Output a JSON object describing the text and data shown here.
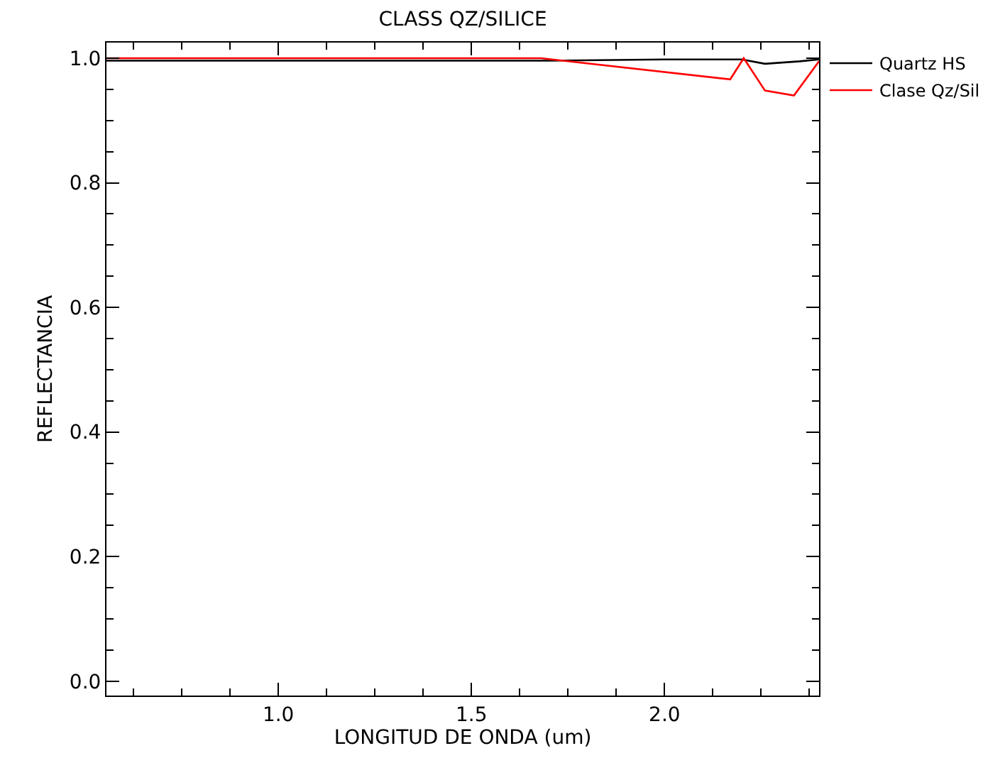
{
  "chart_data": {
    "type": "line",
    "title": "CLASS QZ/SILICE",
    "xlabel": "LONGITUD DE ONDA (um)",
    "ylabel": "REFLECTANCIA",
    "xlim": [
      0.555,
      2.4
    ],
    "ylim": [
      -0.023,
      1.025
    ],
    "xticks": [
      {
        "value": 0.625,
        "label": null
      },
      {
        "value": 0.75,
        "label": null
      },
      {
        "value": 0.875,
        "label": null
      },
      {
        "value": 1.0,
        "label": "1.0"
      },
      {
        "value": 1.125,
        "label": null
      },
      {
        "value": 1.25,
        "label": null
      },
      {
        "value": 1.375,
        "label": null
      },
      1.5,
      {
        "value": 1.625,
        "label": null
      },
      {
        "value": 1.75,
        "label": null
      },
      {
        "value": 1.875,
        "label": null
      },
      {
        "value": 2.0,
        "label": "2.0"
      },
      {
        "value": 2.125,
        "label": null
      },
      {
        "value": 2.25,
        "label": null
      },
      {
        "value": 2.375,
        "label": null
      }
    ],
    "yticks": [
      {
        "value": 0.0,
        "label": "0.0"
      },
      {
        "value": 0.05,
        "label": null
      },
      {
        "value": 0.1,
        "label": null
      },
      {
        "value": 0.15,
        "label": null
      },
      0.2,
      {
        "value": 0.25,
        "label": null
      },
      {
        "value": 0.3,
        "label": null
      },
      {
        "value": 0.35,
        "label": null
      },
      0.4,
      {
        "value": 0.45,
        "label": null
      },
      {
        "value": 0.5,
        "label": null
      },
      {
        "value": 0.55,
        "label": null
      },
      0.6,
      {
        "value": 0.65,
        "label": null
      },
      {
        "value": 0.7,
        "label": null
      },
      {
        "value": 0.75,
        "label": null
      },
      0.8,
      {
        "value": 0.85,
        "label": null
      },
      {
        "value": 0.9,
        "label": null
      },
      {
        "value": 0.95,
        "label": null
      },
      {
        "value": 1.0,
        "label": "1.0"
      }
    ],
    "legend": "top right",
    "marker": "none",
    "line_style": "solid",
    "series": [
      {
        "name": "Quartz HS",
        "color": "#000000",
        "x": [
          0.555,
          1.7,
          2.0,
          2.2,
          2.26,
          2.35,
          2.4
        ],
        "values": [
          0.996,
          0.996,
          0.998,
          0.998,
          0.991,
          0.995,
          0.998
        ]
      },
      {
        "name": "Clase Qz/Sil",
        "color": "#ff0000",
        "x": [
          0.555,
          1.68,
          2.17,
          2.205,
          2.26,
          2.335,
          2.4
        ],
        "values": [
          1.0,
          1.0,
          0.966,
          1.0,
          0.948,
          0.94,
          0.995
        ]
      }
    ]
  }
}
